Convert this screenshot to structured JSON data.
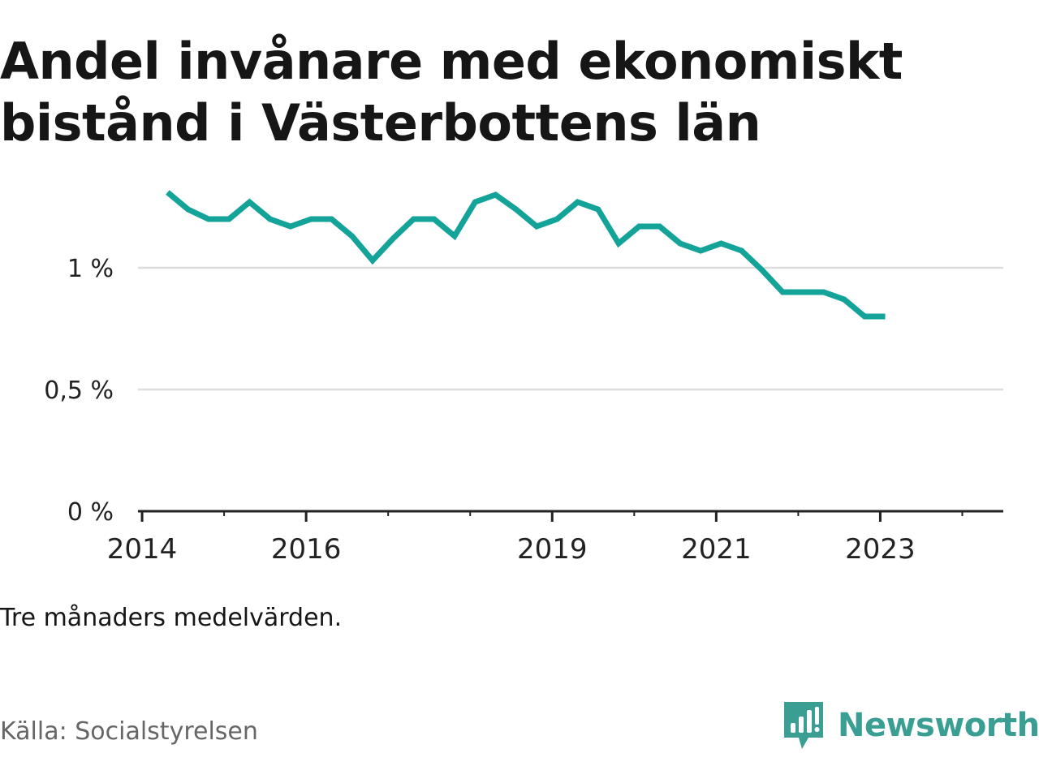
{
  "title_lines": [
    "Andel invånare med ekonomiskt",
    "bistånd i Västerbottens län"
  ],
  "note": "Tre månaders medelvärden.",
  "source": "Källa: Socialstyrelsen",
  "brand": {
    "name": "Newsworthy",
    "icon": "newsworthy-logo-icon",
    "color": "#3a9e93"
  },
  "colors": {
    "line": "#13a398",
    "grid": "#dddddd",
    "axis": "#222222"
  },
  "chart_data": {
    "type": "line",
    "title": "Andel invånare med ekonomiskt bistånd i Västerbottens län",
    "xlabel": "",
    "ylabel": "",
    "x_ticks": [
      {
        "label": "2014",
        "value": 2014.0
      },
      {
        "label": "2016",
        "value": 2016.0
      },
      {
        "label": "2019",
        "value": 2019.0
      },
      {
        "label": "2021",
        "value": 2021.0
      },
      {
        "label": "2023",
        "value": 2023.0
      }
    ],
    "y_ticks": [
      {
        "label": "0 %",
        "value": 0
      },
      {
        "label": "0,5 %",
        "value": 0.5
      },
      {
        "label": "1 %",
        "value": 1
      }
    ],
    "xlim": [
      2013.95,
      2024.5
    ],
    "ylim": [
      0,
      1.4
    ],
    "grid": true,
    "series": [
      {
        "x": [
          2014.31,
          2014.56,
          2014.81,
          2015.06,
          2015.31,
          2015.56,
          2015.81,
          2016.06,
          2016.31,
          2016.56,
          2016.81,
          2017.06,
          2017.31,
          2017.56,
          2017.81,
          2018.06,
          2018.31,
          2018.56,
          2018.81,
          2019.06,
          2019.31,
          2019.56,
          2019.81,
          2020.06,
          2020.31,
          2020.56,
          2020.81,
          2021.06,
          2021.31,
          2021.56,
          2021.81,
          2022.06,
          2022.31,
          2022.56,
          2022.81,
          2023.06
        ],
        "values": [
          1.31,
          1.24,
          1.2,
          1.2,
          1.27,
          1.2,
          1.17,
          1.2,
          1.2,
          1.13,
          1.03,
          1.12,
          1.2,
          1.2,
          1.13,
          1.27,
          1.3,
          1.24,
          1.17,
          1.2,
          1.27,
          1.24,
          1.1,
          1.17,
          1.17,
          1.1,
          1.07,
          1.1,
          1.07,
          0.99,
          0.9,
          0.9,
          0.9,
          0.87,
          0.8,
          0.8
        ]
      }
    ]
  }
}
